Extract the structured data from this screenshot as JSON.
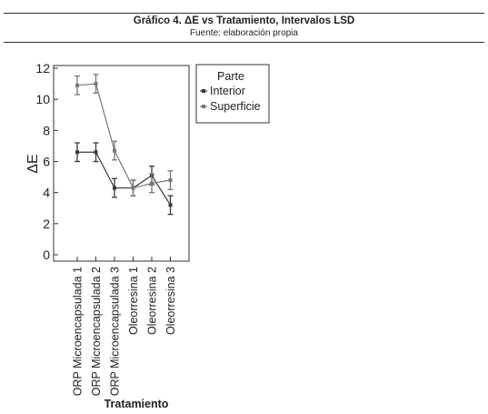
{
  "header": {
    "title": "Gráfico 4. ΔE vs Tratamiento, Intervalos LSD",
    "subtitle": "Fuente: elaboración propia"
  },
  "chart_data": {
    "type": "line",
    "xlabel": "Tratamiento",
    "ylabel": "ΔE",
    "ylim": [
      0,
      12
    ],
    "yticks": [
      0,
      2,
      4,
      6,
      8,
      10,
      12
    ],
    "categories": [
      "ORP Microencapsulada 1",
      "ORP Microencapsulada 2",
      "ORP Microencapsulada 3",
      "Oleorresina 1",
      "Oleorresina 2",
      "Oleorresina 3"
    ],
    "legend_title": "Parte",
    "legend_position": "right",
    "series": [
      {
        "name": "Interior",
        "color": "#3a3a3a",
        "values": [
          6.6,
          6.6,
          4.3,
          4.3,
          5.1,
          3.2
        ],
        "lower": [
          6.0,
          6.0,
          3.7,
          3.8,
          4.5,
          2.6
        ],
        "upper": [
          7.2,
          7.2,
          4.9,
          4.8,
          5.7,
          3.8
        ]
      },
      {
        "name": "Superficie",
        "color": "#777777",
        "values": [
          10.9,
          11.0,
          6.7,
          4.3,
          4.6,
          4.8
        ],
        "lower": [
          10.3,
          10.4,
          6.1,
          3.8,
          4.0,
          4.2
        ],
        "upper": [
          11.5,
          11.6,
          7.3,
          4.8,
          5.2,
          5.4
        ]
      }
    ]
  }
}
